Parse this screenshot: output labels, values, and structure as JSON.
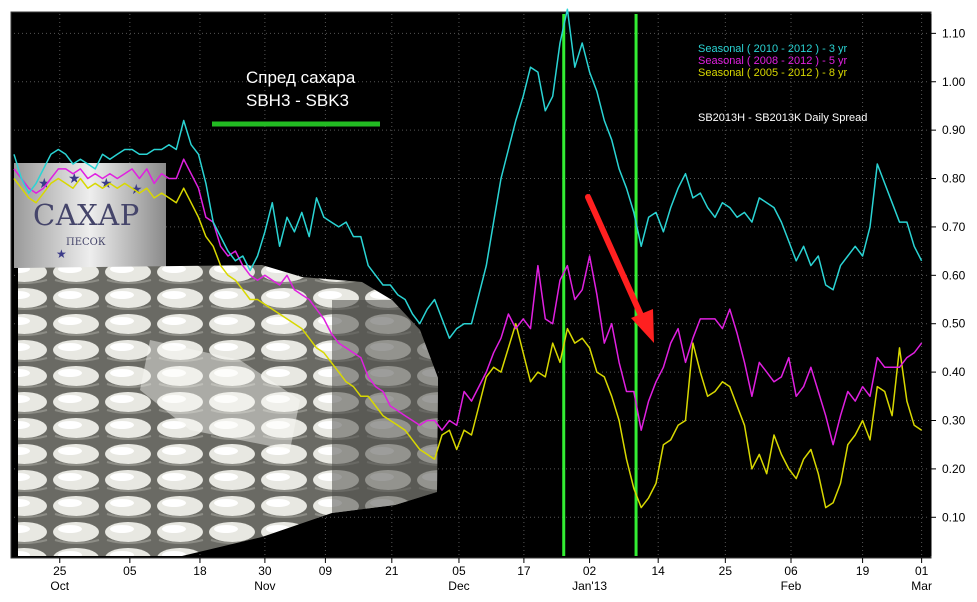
{
  "chart_data": {
    "type": "line",
    "title": "SB2013H - SB2013K Daily Spread",
    "annotation": {
      "line1": "Спред сахара",
      "line2": "SBH3 - SBK3"
    },
    "bag_print": {
      "line1": "САХАР",
      "line2": "ПЕСОК"
    },
    "ylim": [
      0.02,
      1.14
    ],
    "y_ticks": [
      "1.10",
      "1.00",
      "0.90",
      "0.80",
      "0.70",
      "0.60",
      "0.50",
      "0.40",
      "0.30",
      "0.20",
      "0.10"
    ],
    "y_tick_values": [
      1.1,
      1.0,
      0.9,
      0.8,
      0.7,
      0.6,
      0.5,
      0.4,
      0.3,
      0.2,
      0.1
    ],
    "x_ticks": [
      "25",
      "05",
      "18",
      "30",
      "09",
      "21",
      "05",
      "17",
      "02",
      "14",
      "25",
      "06",
      "19",
      "01"
    ],
    "x_tick_index": [
      6.2,
      15.7,
      25.2,
      34.0,
      42.2,
      51.2,
      60.3,
      69.1,
      78.0,
      87.3,
      96.4,
      105.3,
      115.0,
      123.0
    ],
    "month_labels": [
      "Oct",
      "Nov",
      "Dec",
      "Jan'13",
      "Feb",
      "Mar"
    ],
    "month_label_index": [
      6.2,
      34.0,
      60.3,
      78.0,
      105.3,
      123.0
    ],
    "x_range": [
      0,
      124
    ],
    "grid": true,
    "legend_position": "top-right",
    "vlines_index": [
      74.5,
      84.3
    ],
    "series": [
      {
        "name": "Seasonal ( 2010 - 2012 ) - 3 yr",
        "color": "#2ad4d4",
        "values": [
          0.85,
          0.8,
          0.77,
          0.79,
          0.82,
          0.85,
          0.86,
          0.85,
          0.83,
          0.84,
          0.83,
          0.82,
          0.85,
          0.84,
          0.85,
          0.86,
          0.86,
          0.85,
          0.85,
          0.86,
          0.86,
          0.87,
          0.86,
          0.92,
          0.87,
          0.85,
          0.79,
          0.71,
          0.68,
          0.65,
          0.63,
          0.64,
          0.61,
          0.64,
          0.69,
          0.75,
          0.66,
          0.72,
          0.69,
          0.73,
          0.68,
          0.76,
          0.72,
          0.71,
          0.7,
          0.71,
          0.68,
          0.68,
          0.62,
          0.6,
          0.58,
          0.58,
          0.56,
          0.55,
          0.52,
          0.5,
          0.53,
          0.55,
          0.51,
          0.47,
          0.49,
          0.5,
          0.5,
          0.56,
          0.62,
          0.71,
          0.8,
          0.86,
          0.92,
          0.97,
          1.03,
          1.02,
          0.94,
          0.97,
          1.08,
          1.15,
          1.03,
          1.08,
          1.02,
          0.98,
          0.92,
          0.88,
          0.82,
          0.78,
          0.73,
          0.66,
          0.72,
          0.73,
          0.69,
          0.74,
          0.78,
          0.81,
          0.76,
          0.77,
          0.74,
          0.72,
          0.75,
          0.74,
          0.72,
          0.73,
          0.71,
          0.76,
          0.75,
          0.74,
          0.71,
          0.67,
          0.63,
          0.66,
          0.62,
          0.64,
          0.58,
          0.57,
          0.62,
          0.64,
          0.66,
          0.64,
          0.7,
          0.83,
          0.79,
          0.75,
          0.71,
          0.71,
          0.66,
          0.63
        ]
      },
      {
        "name": "Seasonal ( 2008 - 2012 ) - 5 yr",
        "color": "#e020e0",
        "values": [
          0.82,
          0.8,
          0.78,
          0.77,
          0.78,
          0.8,
          0.82,
          0.82,
          0.81,
          0.82,
          0.8,
          0.81,
          0.8,
          0.81,
          0.8,
          0.81,
          0.82,
          0.8,
          0.82,
          0.79,
          0.81,
          0.8,
          0.8,
          0.84,
          0.81,
          0.78,
          0.72,
          0.71,
          0.66,
          0.64,
          0.65,
          0.62,
          0.6,
          0.59,
          0.6,
          0.59,
          0.58,
          0.6,
          0.57,
          0.56,
          0.55,
          0.53,
          0.51,
          0.48,
          0.46,
          0.45,
          0.44,
          0.43,
          0.39,
          0.37,
          0.36,
          0.33,
          0.32,
          0.31,
          0.3,
          0.29,
          0.3,
          0.3,
          0.28,
          0.3,
          0.29,
          0.36,
          0.34,
          0.37,
          0.4,
          0.44,
          0.47,
          0.52,
          0.49,
          0.51,
          0.49,
          0.62,
          0.51,
          0.5,
          0.59,
          0.62,
          0.55,
          0.57,
          0.64,
          0.56,
          0.46,
          0.5,
          0.42,
          0.36,
          0.36,
          0.28,
          0.34,
          0.38,
          0.41,
          0.46,
          0.49,
          0.42,
          0.47,
          0.51,
          0.51,
          0.51,
          0.49,
          0.53,
          0.48,
          0.42,
          0.35,
          0.42,
          0.4,
          0.38,
          0.39,
          0.43,
          0.35,
          0.37,
          0.41,
          0.36,
          0.31,
          0.25,
          0.31,
          0.36,
          0.34,
          0.37,
          0.35,
          0.43,
          0.41,
          0.41,
          0.41,
          0.43,
          0.44,
          0.46
        ]
      },
      {
        "name": "Seasonal ( 2005 - 2012 ) - 8 yr",
        "color": "#d8d800",
        "values": [
          0.8,
          0.78,
          0.76,
          0.75,
          0.77,
          0.79,
          0.8,
          0.79,
          0.78,
          0.8,
          0.78,
          0.79,
          0.78,
          0.79,
          0.78,
          0.79,
          0.78,
          0.77,
          0.78,
          0.76,
          0.77,
          0.76,
          0.75,
          0.78,
          0.75,
          0.72,
          0.68,
          0.66,
          0.62,
          0.6,
          0.59,
          0.57,
          0.55,
          0.55,
          0.54,
          0.53,
          0.52,
          0.51,
          0.5,
          0.49,
          0.47,
          0.45,
          0.44,
          0.42,
          0.4,
          0.38,
          0.37,
          0.35,
          0.35,
          0.33,
          0.31,
          0.3,
          0.29,
          0.28,
          0.26,
          0.24,
          0.23,
          0.22,
          0.27,
          0.28,
          0.24,
          0.28,
          0.27,
          0.33,
          0.39,
          0.41,
          0.4,
          0.45,
          0.5,
          0.44,
          0.38,
          0.4,
          0.39,
          0.46,
          0.42,
          0.49,
          0.46,
          0.47,
          0.45,
          0.4,
          0.39,
          0.35,
          0.3,
          0.22,
          0.16,
          0.12,
          0.14,
          0.17,
          0.25,
          0.26,
          0.29,
          0.3,
          0.46,
          0.4,
          0.35,
          0.36,
          0.38,
          0.37,
          0.33,
          0.29,
          0.2,
          0.23,
          0.19,
          0.27,
          0.23,
          0.2,
          0.18,
          0.22,
          0.24,
          0.19,
          0.12,
          0.13,
          0.17,
          0.25,
          0.27,
          0.3,
          0.26,
          0.37,
          0.36,
          0.31,
          0.45,
          0.34,
          0.29,
          0.28
        ]
      }
    ]
  }
}
